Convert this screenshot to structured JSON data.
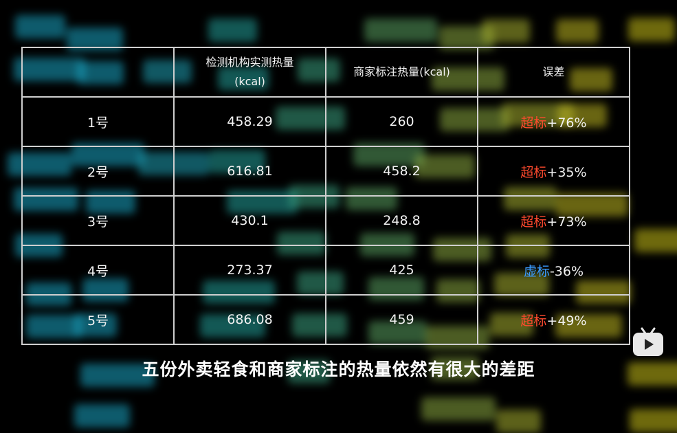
{
  "colors": {
    "over": "#ff4a2e",
    "under": "#3a9bff",
    "border": "#cfcfcf"
  },
  "table": {
    "headers": [
      "",
      "检测机构实测热量\n(kcal)",
      "商家标注热量(kcal)",
      "误差"
    ],
    "header_line1": "检测机构实测热量",
    "header_line2": "(kcal)",
    "rows": [
      {
        "id": "1号",
        "measured": "458.29",
        "labeled": "260",
        "tag": "超标",
        "diff": "+76%",
        "type": "over"
      },
      {
        "id": "2号",
        "measured": "616.81",
        "labeled": "458.2",
        "tag": "超标",
        "diff": "+35%",
        "type": "over"
      },
      {
        "id": "3号",
        "measured": "430.1",
        "labeled": "248.8",
        "tag": "超标",
        "diff": "+73%",
        "type": "over"
      },
      {
        "id": "4号",
        "measured": "273.37",
        "labeled": "425",
        "tag": "虚标",
        "diff": "-36%",
        "type": "under"
      },
      {
        "id": "5号",
        "measured": "686.08",
        "labeled": "459",
        "tag": "超标",
        "diff": "+49%",
        "type": "over"
      }
    ]
  },
  "subtitle": "五份外卖轻食和商家标注的热量依然有很大的差距",
  "logo_icon": "bilibili-tv-icon"
}
